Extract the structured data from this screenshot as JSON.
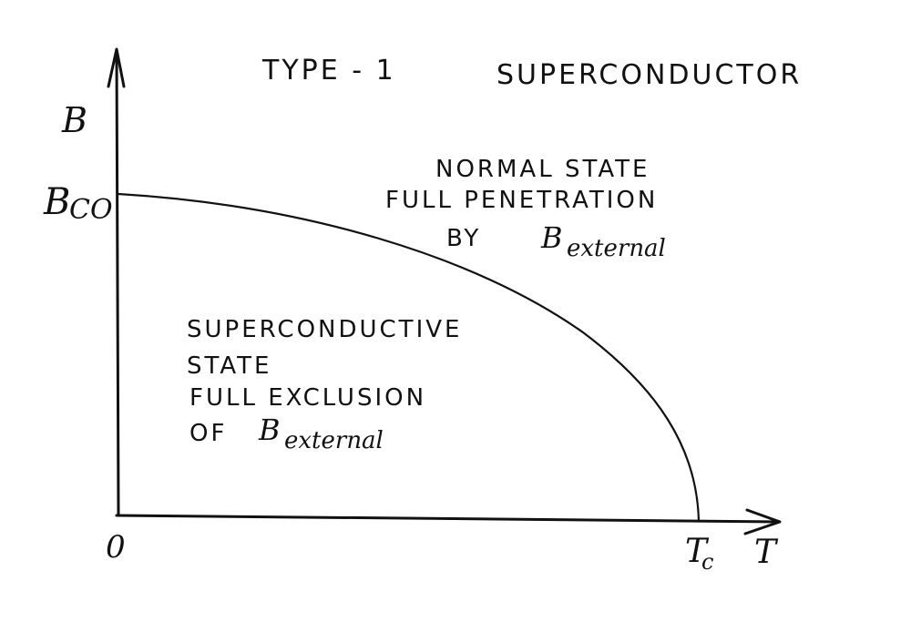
{
  "title": {
    "part1": "TYPE - 1",
    "part2": "SUPERCONDUCTOR"
  },
  "axes": {
    "y_label": "B",
    "y_tick_main": "B",
    "y_tick_sub": "CO",
    "origin_label": "0",
    "x_tick_main": "T",
    "x_tick_sub": "c",
    "x_label": "T"
  },
  "regions": {
    "normal": {
      "line1": "NORMAL STATE",
      "line2": "FULL PENETRATION",
      "line3_prefix": "BY",
      "line3_b": "B",
      "line3_sub": "external"
    },
    "superconductive": {
      "line1": "SUPERCONDUCTIVE",
      "line2": "STATE",
      "line3": "FULL EXCLUSION",
      "line4_prefix": "OF",
      "line4_b": "B",
      "line4_sub": "external"
    }
  },
  "colors": {
    "ink": "#111111",
    "paper": "#ffffff"
  }
}
